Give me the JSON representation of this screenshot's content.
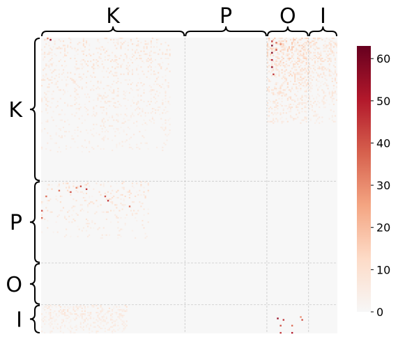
{
  "chart_data": {
    "type": "heatmap",
    "title": "",
    "xlabel": "",
    "ylabel": "",
    "groups": [
      {
        "name": "K",
        "start": 0,
        "end": 100
      },
      {
        "name": "P",
        "start": 100,
        "end": 157
      },
      {
        "name": "O",
        "start": 157,
        "end": 186
      },
      {
        "name": "I",
        "start": 186,
        "end": 206
      }
    ],
    "size": 206,
    "colorbar": {
      "min": 0,
      "max": 63,
      "ticks": [
        0,
        10,
        20,
        30,
        40,
        50,
        60
      ],
      "colormap": "RdBu_r-reds",
      "colors": [
        "#f7f7f7",
        "#fddbc7",
        "#f4a582",
        "#d6604d",
        "#b2182b",
        "#67001f"
      ]
    },
    "grid": true,
    "background_color": "#f7f7f7",
    "hotspots": [
      {
        "row": 1,
        "col": 6,
        "value": 55
      },
      {
        "row": 0,
        "col": 4,
        "value": 30
      },
      {
        "row": 2,
        "col": 160,
        "value": 45
      },
      {
        "row": 5,
        "col": 160,
        "value": 60
      },
      {
        "row": 10,
        "col": 160,
        "value": 58
      },
      {
        "row": 15,
        "col": 160,
        "value": 50
      },
      {
        "row": 20,
        "col": 160,
        "value": 55
      },
      {
        "row": 25,
        "col": 161,
        "value": 45
      },
      {
        "row": 3,
        "col": 163,
        "value": 35
      },
      {
        "row": 4,
        "col": 166,
        "value": 30
      },
      {
        "row": 8,
        "col": 163,
        "value": 40
      },
      {
        "row": 103,
        "col": 27,
        "value": 40
      },
      {
        "row": 105,
        "col": 31,
        "value": 45
      },
      {
        "row": 106,
        "col": 12,
        "value": 35
      },
      {
        "row": 107,
        "col": 20,
        "value": 40
      },
      {
        "row": 104,
        "col": 24,
        "value": 30
      },
      {
        "row": 110,
        "col": 44,
        "value": 40
      },
      {
        "row": 113,
        "col": 46,
        "value": 45
      },
      {
        "row": 117,
        "col": 61,
        "value": 35
      },
      {
        "row": 110,
        "col": 3,
        "value": 35
      },
      {
        "row": 120,
        "col": 0,
        "value": 40
      },
      {
        "row": 125,
        "col": 0,
        "value": 35
      },
      {
        "row": 195,
        "col": 164,
        "value": 55
      },
      {
        "row": 196,
        "col": 168,
        "value": 45
      },
      {
        "row": 196,
        "col": 181,
        "value": 40
      },
      {
        "row": 200,
        "col": 174,
        "value": 35
      },
      {
        "row": 200,
        "col": 166,
        "value": 40
      },
      {
        "row": 206,
        "col": 166,
        "value": 45
      },
      {
        "row": 206,
        "col": 174,
        "value": 50
      },
      {
        "row": 194,
        "col": 180,
        "value": 30
      }
    ]
  }
}
